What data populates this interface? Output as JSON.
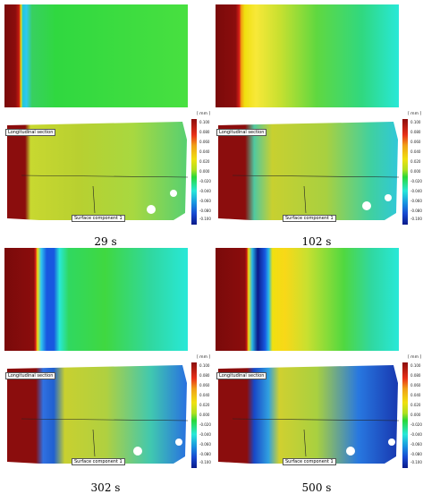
{
  "panels": [
    {
      "caption": "29 s",
      "section_label": "Longitudinal section",
      "component_label": "Surface component 1"
    },
    {
      "caption": "102 s",
      "section_label": "Longitudinal section",
      "component_label": "Surface component 1"
    },
    {
      "caption": "302 s",
      "section_label": "Longitudinal section",
      "component_label": "Surface component 1"
    },
    {
      "caption": "500 s",
      "section_label": "Longitudinal section",
      "component_label": "Surface component 1"
    }
  ],
  "colorbar": {
    "unit": "[ mm ]",
    "ticks": [
      "0.100",
      "0.080",
      "0.060",
      "0.040",
      "0.020",
      "0.000",
      "-0.020",
      "-0.040",
      "-0.060",
      "-0.080",
      "-0.100"
    ]
  },
  "colors": {
    "dark_red": "#8b0d0d",
    "red": "#e8301a",
    "yellow": "#f0e010",
    "green": "#28d838",
    "cyan": "#28e8d8",
    "blue": "#1858e0",
    "navy": "#0a1a8a"
  }
}
